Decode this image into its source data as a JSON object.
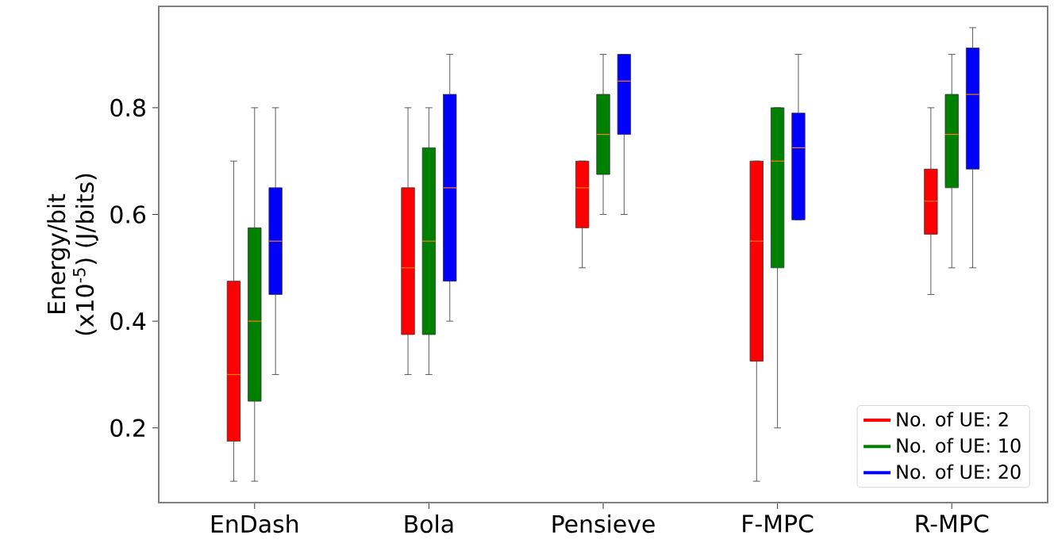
{
  "chart_data": {
    "type": "box",
    "ylabel": "Energy/bit (x10$^{-5}$) (J/bits)",
    "categories": [
      "EnDash",
      "Bola",
      "Pensieve",
      "F-MPC",
      "R-MPC"
    ],
    "ylim": [
      0.06,
      0.99
    ],
    "yticks": [
      0.2,
      0.4,
      0.6,
      0.8
    ],
    "grid": false,
    "legend": "bottom right",
    "series": [
      {
        "name": "No. of UE: 2",
        "color": "#ff0000",
        "boxes": [
          {
            "low": 0.1,
            "q1": 0.175,
            "median": 0.3,
            "q3": 0.475,
            "high": 0.7
          },
          {
            "low": 0.3,
            "q1": 0.375,
            "median": 0.5,
            "q3": 0.65,
            "high": 0.8
          },
          {
            "low": 0.5,
            "q1": 0.575,
            "median": 0.65,
            "q3": 0.7,
            "high": 0.7
          },
          {
            "low": 0.1,
            "q1": 0.325,
            "median": 0.55,
            "q3": 0.7,
            "high": 0.7
          },
          {
            "low": 0.45,
            "q1": 0.563,
            "median": 0.625,
            "q3": 0.685,
            "high": 0.8
          }
        ]
      },
      {
        "name": "No. of UE: 10",
        "color": "#008000",
        "boxes": [
          {
            "low": 0.1,
            "q1": 0.25,
            "median": 0.4,
            "q3": 0.575,
            "high": 0.8
          },
          {
            "low": 0.3,
            "q1": 0.375,
            "median": 0.55,
            "q3": 0.725,
            "high": 0.8
          },
          {
            "low": 0.6,
            "q1": 0.675,
            "median": 0.75,
            "q3": 0.825,
            "high": 0.9
          },
          {
            "low": 0.2,
            "q1": 0.5,
            "median": 0.7,
            "q3": 0.8,
            "high": 0.8
          },
          {
            "low": 0.5,
            "q1": 0.65,
            "median": 0.75,
            "q3": 0.825,
            "high": 0.9
          }
        ]
      },
      {
        "name": "No. of UE: 20",
        "color": "#0000ff",
        "boxes": [
          {
            "low": 0.3,
            "q1": 0.45,
            "median": 0.55,
            "q3": 0.65,
            "high": 0.8
          },
          {
            "low": 0.4,
            "q1": 0.475,
            "median": 0.65,
            "q3": 0.825,
            "high": 0.9
          },
          {
            "low": 0.6,
            "q1": 0.75,
            "median": 0.85,
            "q3": 0.9,
            "high": 0.9
          },
          {
            "low": 0.59,
            "q1": 0.59,
            "median": 0.725,
            "q3": 0.79,
            "high": 0.9
          },
          {
            "low": 0.5,
            "q1": 0.685,
            "median": 0.825,
            "q3": 0.912,
            "high": 0.95
          }
        ]
      }
    ]
  }
}
